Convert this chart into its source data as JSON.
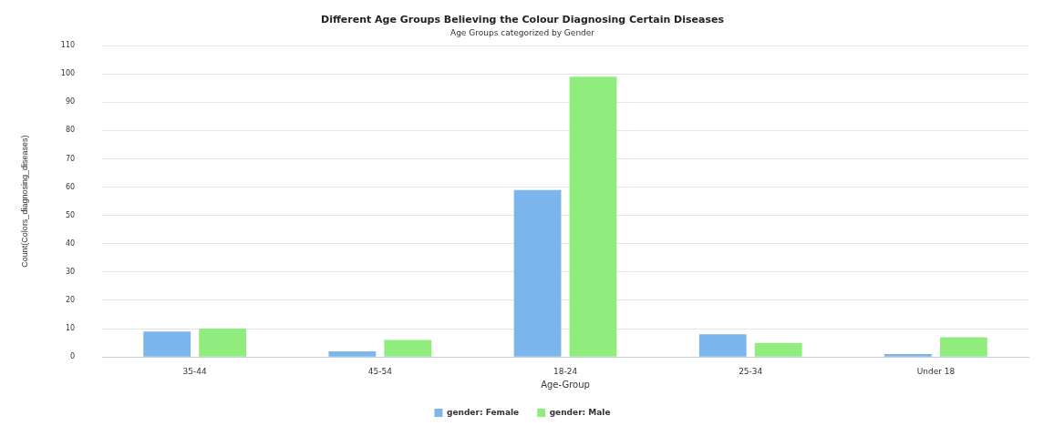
{
  "chart_data": {
    "type": "bar",
    "title": "Different Age Groups Believing the Colour Diagnosing Certain Diseases",
    "subtitle": "Age Groups categorized by Gender",
    "xlabel": "Age-Group",
    "ylabel": "Count(Colors_diagnosing_diseases)",
    "categories": [
      "35-44",
      "45-54",
      "18-24",
      "25-34",
      "Under 18"
    ],
    "series": [
      {
        "name": "gender: Female",
        "color": "#7cb5ec",
        "values": [
          9,
          2,
          59,
          8,
          1
        ]
      },
      {
        "name": "gender: Male",
        "color": "#90ed7d",
        "values": [
          10,
          6,
          99,
          5,
          7
        ]
      }
    ],
    "ylim": [
      0,
      110
    ],
    "yticks": [
      0,
      10,
      20,
      30,
      40,
      50,
      60,
      70,
      80,
      90,
      100,
      110
    ],
    "grid": "y",
    "legend": "bottom"
  }
}
